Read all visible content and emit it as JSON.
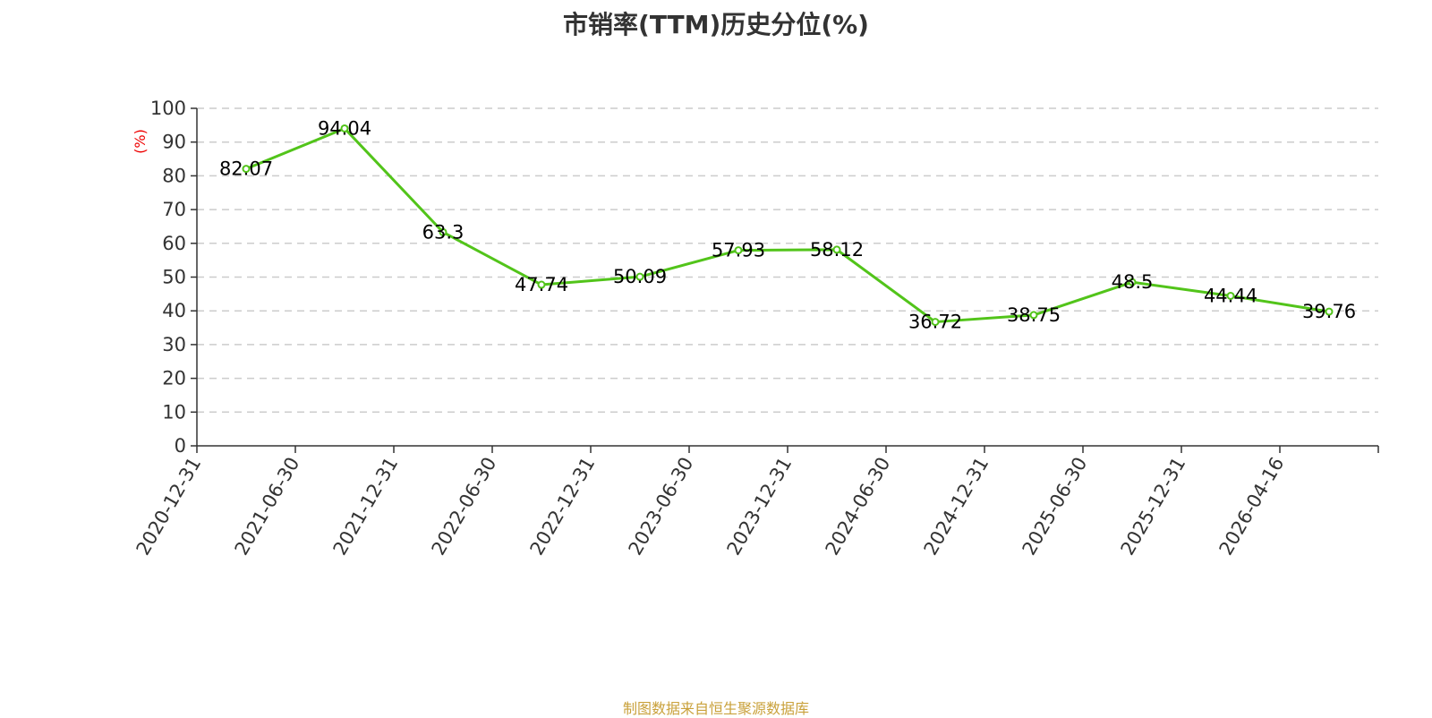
{
  "title": "市销率(TTM)历史分位(%)",
  "source": "制图数据来自恒生聚源数据库",
  "chart_data": {
    "type": "line",
    "title": "市销率(TTM)历史分位(%)",
    "ylabel": "(%)",
    "xlabel": "",
    "categories": [
      "2020-12-31",
      "2021-06-30",
      "2021-12-31",
      "2022-06-30",
      "2022-12-31",
      "2023-06-30",
      "2023-12-31",
      "2024-06-30",
      "2024-12-31",
      "2025-06-30",
      "2025-12-31",
      "2026-04-16"
    ],
    "series": [
      {
        "values": [
          82.07,
          94.04,
          63.3,
          47.74,
          50.09,
          57.93,
          58.12,
          36.72,
          38.75,
          48.5,
          44.44,
          39.76
        ],
        "labels": [
          "82.07",
          "94.04",
          "63.3",
          "47.74",
          "50.09",
          "57.93",
          "58.12",
          "36.72",
          "38.75",
          "48.5",
          "44.44",
          "39.76"
        ],
        "color": "#52c41a"
      }
    ],
    "ylim": [
      0,
      100
    ],
    "yticks": [
      "0",
      "10",
      "20",
      "30",
      "40",
      "50",
      "60",
      "70",
      "80",
      "90",
      "100"
    ],
    "grid": true,
    "legend": "none"
  }
}
